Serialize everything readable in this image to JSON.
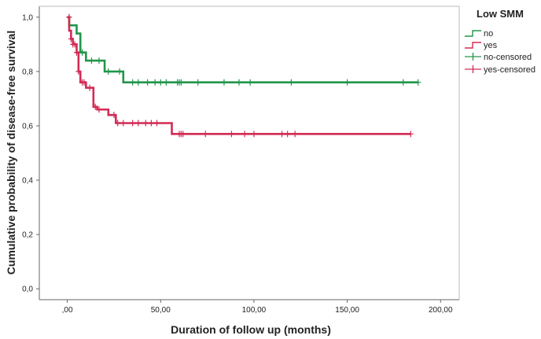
{
  "chart_data": {
    "type": "line",
    "xlabel": "Duration of follow up (months)",
    "ylabel": "Cumulative probability of disease-free survival",
    "xlim": [
      -15,
      210
    ],
    "ylim": [
      -0.04,
      1.04
    ],
    "xticks": [
      0,
      50,
      100,
      150,
      200
    ],
    "xtick_labels": [
      ",00",
      "50,00",
      "100,00",
      "150,00",
      "200,00"
    ],
    "yticks": [
      0,
      0.2,
      0.4,
      0.6,
      0.8,
      1.0
    ],
    "ytick_labels": [
      "0,0",
      "0,2",
      "0,4",
      "0,6",
      "0,8",
      "1,0"
    ],
    "grid": false,
    "legend": {
      "title": "Low SMM",
      "position": "top-right",
      "entries": [
        "no",
        "yes",
        "no-censored",
        "yes-censored"
      ]
    },
    "series": [
      {
        "name": "no",
        "color": "#21964a",
        "steps": [
          [
            0,
            1.0
          ],
          [
            1,
            0.97
          ],
          [
            5,
            0.94
          ],
          [
            7,
            0.87
          ],
          [
            10,
            0.84
          ],
          [
            20,
            0.8
          ],
          [
            30,
            0.76
          ],
          [
            188,
            0.76
          ]
        ],
        "censored": [
          [
            1,
            1.0
          ],
          [
            8,
            0.87
          ],
          [
            13,
            0.84
          ],
          [
            17,
            0.84
          ],
          [
            22,
            0.8
          ],
          [
            28,
            0.8
          ],
          [
            35,
            0.76
          ],
          [
            38,
            0.76
          ],
          [
            43,
            0.76
          ],
          [
            47,
            0.76
          ],
          [
            50,
            0.76
          ],
          [
            53,
            0.76
          ],
          [
            59,
            0.76
          ],
          [
            60,
            0.76
          ],
          [
            61,
            0.76
          ],
          [
            70,
            0.76
          ],
          [
            84,
            0.76
          ],
          [
            92,
            0.76
          ],
          [
            98,
            0.76
          ],
          [
            120,
            0.76
          ],
          [
            150,
            0.76
          ],
          [
            180,
            0.76
          ],
          [
            188,
            0.76
          ]
        ]
      },
      {
        "name": "yes",
        "color": "#d22b54",
        "steps": [
          [
            0,
            1.0
          ],
          [
            1,
            0.95
          ],
          [
            2,
            0.92
          ],
          [
            3,
            0.9
          ],
          [
            5,
            0.87
          ],
          [
            6,
            0.8
          ],
          [
            7,
            0.76
          ],
          [
            10,
            0.74
          ],
          [
            14,
            0.67
          ],
          [
            16,
            0.66
          ],
          [
            22,
            0.64
          ],
          [
            26,
            0.61
          ],
          [
            56,
            0.57
          ],
          [
            184,
            0.57
          ]
        ],
        "censored": [
          [
            1,
            1.0
          ],
          [
            2,
            0.92
          ],
          [
            3,
            0.9
          ],
          [
            4,
            0.9
          ],
          [
            5,
            0.87
          ],
          [
            6,
            0.8
          ],
          [
            8,
            0.76
          ],
          [
            9,
            0.76
          ],
          [
            12,
            0.74
          ],
          [
            15,
            0.67
          ],
          [
            17,
            0.66
          ],
          [
            25,
            0.64
          ],
          [
            27,
            0.61
          ],
          [
            30,
            0.61
          ],
          [
            35,
            0.61
          ],
          [
            38,
            0.61
          ],
          [
            42,
            0.61
          ],
          [
            45,
            0.61
          ],
          [
            48,
            0.61
          ],
          [
            60,
            0.57
          ],
          [
            61,
            0.57
          ],
          [
            62,
            0.57
          ],
          [
            74,
            0.57
          ],
          [
            88,
            0.57
          ],
          [
            95,
            0.57
          ],
          [
            100,
            0.57
          ],
          [
            115,
            0.57
          ],
          [
            118,
            0.57
          ],
          [
            122,
            0.57
          ],
          [
            184,
            0.57
          ]
        ]
      }
    ]
  }
}
